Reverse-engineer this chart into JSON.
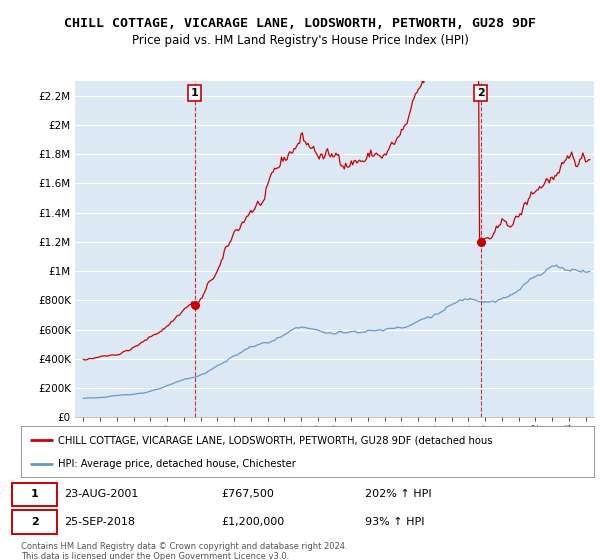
{
  "title": "CHILL COTTAGE, VICARAGE LANE, LODSWORTH, PETWORTH, GU28 9DF",
  "subtitle": "Price paid vs. HM Land Registry's House Price Index (HPI)",
  "title_fontsize": 9.5,
  "subtitle_fontsize": 8.5,
  "ylim": [
    0,
    2300000
  ],
  "yticks": [
    0,
    200000,
    400000,
    600000,
    800000,
    1000000,
    1200000,
    1400000,
    1600000,
    1800000,
    2000000,
    2200000
  ],
  "ytick_labels": [
    "£0",
    "£200K",
    "£400K",
    "£600K",
    "£800K",
    "£1M",
    "£1.2M",
    "£1.4M",
    "£1.6M",
    "£1.8M",
    "£2M",
    "£2.2M"
  ],
  "xlim_start": 1994.5,
  "xlim_end": 2025.5,
  "xticks": [
    1995,
    1996,
    1997,
    1998,
    1999,
    2000,
    2001,
    2002,
    2003,
    2004,
    2005,
    2006,
    2007,
    2008,
    2009,
    2010,
    2011,
    2012,
    2013,
    2014,
    2015,
    2016,
    2017,
    2018,
    2019,
    2020,
    2021,
    2022,
    2023,
    2024,
    2025
  ],
  "background_color": "#ffffff",
  "plot_background": "#dce9f5",
  "grid_color": "#ffffff",
  "red_line_color": "#cc0000",
  "blue_line_color": "#6699cc",
  "sale1_x": 2001.645,
  "sale1_y": 767500,
  "sale1_label": "1",
  "sale1_date": "23-AUG-2001",
  "sale1_price": "£767,500",
  "sale1_hpi": "202% ↑ HPI",
  "sale2_x": 2018.73,
  "sale2_y": 1200000,
  "sale2_label": "2",
  "sale2_date": "25-SEP-2018",
  "sale2_price": "£1,200,000",
  "sale2_hpi": "93% ↑ HPI",
  "legend_red": "CHILL COTTAGE, VICARAGE LANE, LODSWORTH, PETWORTH, GU28 9DF (detached hous",
  "legend_blue": "HPI: Average price, detached house, Chichester",
  "footer": "Contains HM Land Registry data © Crown copyright and database right 2024.\nThis data is licensed under the Open Government Licence v3.0."
}
